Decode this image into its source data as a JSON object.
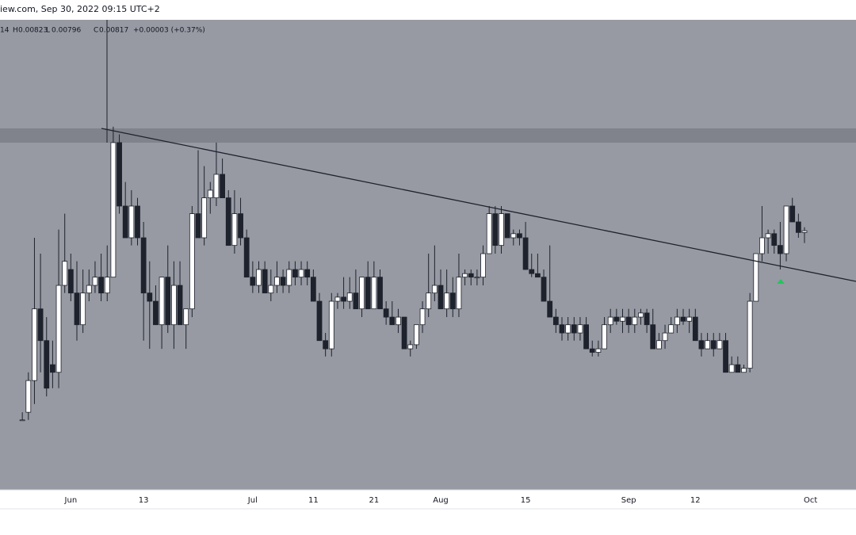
{
  "chart_data": {
    "type": "candlestick",
    "site_fragment": "iew.com, Sep 30, 2022 09:15 UTC+2",
    "legend": {
      "open_fragment": "14",
      "high_label": "H",
      "low_label": "L",
      "close_label": "C",
      "change": "+0.00003 (+0.37%)"
    },
    "categories": [
      null,
      null,
      null,
      null,
      null,
      null,
      null,
      null,
      "Jun",
      null,
      null,
      null,
      null,
      null,
      null,
      null,
      null,
      null,
      null,
      null,
      "13",
      null,
      null,
      null,
      null,
      null,
      null,
      null,
      null,
      null,
      null,
      null,
      null,
      null,
      null,
      null,
      null,
      null,
      "Jul",
      null,
      null,
      null,
      null,
      null,
      null,
      null,
      null,
      null,
      "11",
      null,
      null,
      null,
      null,
      null,
      null,
      null,
      null,
      null,
      "21",
      null,
      null,
      null,
      null,
      null,
      null,
      null,
      null,
      null,
      null,
      "Aug",
      null,
      null,
      null,
      null,
      null,
      null,
      null,
      null,
      null,
      null,
      null,
      null,
      null,
      "15",
      null,
      null,
      null,
      null,
      null,
      null,
      null,
      null,
      null,
      null,
      null,
      null,
      null,
      null,
      null,
      null,
      "Sep",
      null,
      null,
      null,
      null,
      null,
      null,
      null,
      null,
      null,
      null,
      "12",
      null,
      null,
      null,
      null,
      null,
      null,
      null,
      null,
      null,
      null,
      null,
      null,
      null,
      null,
      null,
      null,
      null,
      null,
      "Oct"
    ],
    "open": [
      0.00495,
      0.00508,
      0.00562,
      0.00684,
      0.0063,
      0.00589,
      0.00576,
      0.00724,
      0.00751,
      0.00711,
      0.00657,
      0.00711,
      0.00724,
      0.00738,
      0.00711,
      0.00738,
      0.00967,
      0.00859,
      0.00805,
      0.00859,
      0.00805,
      0.00711,
      0.00697,
      0.00657,
      0.00738,
      0.00657,
      0.00724,
      0.00657,
      0.00684,
      0.00846,
      0.00805,
      0.00873,
      0.00873,
      0.00913,
      0.00873,
      0.00792,
      0.00846,
      0.00805,
      0.00738,
      0.00724,
      0.00751,
      0.00711,
      0.00724,
      0.00738,
      0.00724,
      0.00751,
      0.00738,
      0.00751,
      0.00738,
      0.00697,
      0.0063,
      0.00616,
      0.00697,
      0.00704,
      0.00697,
      0.00711,
      0.00684,
      0.00738,
      0.00684,
      0.00738,
      0.00684,
      0.0067,
      0.00657,
      0.0067,
      0.00616,
      0.00623,
      0.00657,
      0.00684,
      0.00711,
      0.00724,
      0.00684,
      0.00711,
      0.00684,
      0.00738,
      0.00744,
      0.00738,
      0.00738,
      0.00778,
      0.00846,
      0.00792,
      0.00846,
      0.00805,
      0.00812,
      0.00805,
      0.00751,
      0.00744,
      0.00738,
      0.00697,
      0.0067,
      0.00657,
      0.00643,
      0.00657,
      0.00643,
      0.00657,
      0.00616,
      0.0061,
      0.00616,
      0.00657,
      0.0067,
      0.00663,
      0.0067,
      0.00657,
      0.0067,
      0.00677,
      0.00657,
      0.00616,
      0.0063,
      0.00643,
      0.00657,
      0.0067,
      0.00663,
      0.0067,
      0.0063,
      0.00616,
      0.0063,
      0.00616,
      0.0063,
      0.00576,
      0.00589,
      0.00576,
      0.00583,
      0.00697,
      0.00778,
      0.00805,
      0.00812,
      0.00792,
      0.00778,
      0.00859,
      0.00832,
      0.00814,
      null
    ],
    "high": [
      0.00508,
      0.00576,
      0.00805,
      0.00778,
      0.0067,
      0.0063,
      0.00819,
      0.00846,
      0.00778,
      0.00765,
      0.00751,
      0.00751,
      0.00765,
      0.00778,
      0.00792,
      0.00994,
      0.00981,
      0.009,
      0.00886,
      0.00873,
      0.00832,
      0.00765,
      0.00724,
      0.00738,
      0.00792,
      0.00765,
      0.00765,
      0.00684,
      0.00859,
      0.00954,
      0.00927,
      0.009,
      0.00967,
      0.0094,
      0.00886,
      0.00886,
      0.00873,
      0.00819,
      0.00765,
      0.00765,
      0.00765,
      0.00751,
      0.00765,
      0.00751,
      0.00765,
      0.00765,
      0.00765,
      0.00765,
      0.00751,
      0.00711,
      0.00643,
      0.00711,
      0.00711,
      0.00738,
      0.00738,
      0.00751,
      0.00738,
      0.00765,
      0.00765,
      0.00751,
      0.00697,
      0.00697,
      0.00684,
      0.0067,
      0.0063,
      0.00657,
      0.00697,
      0.00778,
      0.00792,
      0.00751,
      0.00751,
      0.00738,
      0.00778,
      0.00751,
      0.00751,
      0.00751,
      0.00792,
      0.00859,
      0.00859,
      0.00859,
      0.00846,
      0.00819,
      0.00819,
      0.00832,
      0.00778,
      0.00778,
      0.00751,
      0.00792,
      0.00684,
      0.0067,
      0.0067,
      0.0067,
      0.0067,
      0.0067,
      0.0063,
      0.0063,
      0.0067,
      0.00684,
      0.00684,
      0.00684,
      0.00684,
      0.00684,
      0.00684,
      0.00684,
      0.00684,
      0.00643,
      0.00657,
      0.0067,
      0.00684,
      0.00684,
      0.00684,
      0.00684,
      0.00643,
      0.00643,
      0.00643,
      0.00643,
      0.00643,
      0.00603,
      0.00603,
      0.00589,
      0.00711,
      0.00778,
      0.00859,
      0.00819,
      0.00819,
      0.00832,
      0.00859,
      0.00873,
      0.00846,
      0.00823,
      null
    ],
    "low": [
      0.00495,
      0.00495,
      0.00522,
      0.00576,
      0.00535,
      0.00549,
      0.00549,
      0.00711,
      0.00697,
      0.0063,
      0.00643,
      0.00697,
      0.00711,
      0.00697,
      0.00697,
      0.00738,
      0.00846,
      0.00805,
      0.00792,
      0.00792,
      0.0063,
      0.00616,
      0.00657,
      0.00616,
      0.00643,
      0.00616,
      0.00657,
      0.00616,
      0.0067,
      0.00805,
      0.00792,
      0.00846,
      0.00859,
      0.00873,
      0.00792,
      0.00778,
      0.00792,
      0.00738,
      0.00711,
      0.00711,
      0.00711,
      0.00697,
      0.00711,
      0.00711,
      0.00711,
      0.00724,
      0.00724,
      0.00724,
      0.00697,
      0.0063,
      0.00603,
      0.00603,
      0.00684,
      0.00684,
      0.00684,
      0.00684,
      0.0067,
      0.00684,
      0.00684,
      0.00684,
      0.00657,
      0.00657,
      0.00643,
      0.00616,
      0.00603,
      0.00616,
      0.00643,
      0.0067,
      0.00697,
      0.00684,
      0.0067,
      0.0067,
      0.0067,
      0.00724,
      0.00724,
      0.00724,
      0.00724,
      0.00778,
      0.00778,
      0.00778,
      0.00805,
      0.00792,
      0.00792,
      0.00751,
      0.00738,
      0.00738,
      0.00697,
      0.0067,
      0.00643,
      0.0063,
      0.0063,
      0.0063,
      0.0063,
      0.00616,
      0.00603,
      0.00603,
      0.00616,
      0.00643,
      0.00657,
      0.00643,
      0.00643,
      0.00643,
      0.00657,
      0.00643,
      0.00616,
      0.00616,
      0.00616,
      0.00643,
      0.00643,
      0.00657,
      0.00643,
      0.0063,
      0.00603,
      0.00616,
      0.00603,
      0.00616,
      0.00576,
      0.00576,
      0.00576,
      0.00576,
      0.00576,
      0.00697,
      0.00765,
      0.00778,
      0.00778,
      0.00751,
      0.00765,
      0.00832,
      0.00805,
      0.00796,
      null
    ],
    "close": [
      0.00495,
      0.00562,
      0.00684,
      0.0063,
      0.00549,
      0.00576,
      0.00724,
      0.00765,
      0.00711,
      0.00657,
      0.00711,
      0.00724,
      0.00738,
      0.00711,
      0.00738,
      0.00967,
      0.00859,
      0.00805,
      0.00859,
      0.00805,
      0.00711,
      0.00697,
      0.00657,
      0.00738,
      0.00657,
      0.00724,
      0.00657,
      0.00684,
      0.00846,
      0.00805,
      0.00873,
      0.00886,
      0.00913,
      0.00873,
      0.00792,
      0.00846,
      0.00805,
      0.00738,
      0.00724,
      0.00751,
      0.00711,
      0.00724,
      0.00738,
      0.00724,
      0.00751,
      0.00738,
      0.00751,
      0.00738,
      0.00697,
      0.0063,
      0.00616,
      0.00697,
      0.00704,
      0.00697,
      0.00711,
      0.00684,
      0.00738,
      0.00684,
      0.00738,
      0.00684,
      0.0067,
      0.00657,
      0.0067,
      0.00616,
      0.00623,
      0.00657,
      0.00684,
      0.00711,
      0.00724,
      0.00684,
      0.00711,
      0.00684,
      0.00738,
      0.00744,
      0.00738,
      0.00738,
      0.00778,
      0.00846,
      0.00792,
      0.00846,
      0.00805,
      0.00812,
      0.00805,
      0.00751,
      0.00744,
      0.00738,
      0.00697,
      0.0067,
      0.00657,
      0.00643,
      0.00657,
      0.00643,
      0.00657,
      0.00616,
      0.0061,
      0.00616,
      0.00657,
      0.0067,
      0.00663,
      0.0067,
      0.00657,
      0.0067,
      0.00677,
      0.00657,
      0.00616,
      0.0063,
      0.00643,
      0.00657,
      0.0067,
      0.00663,
      0.0067,
      0.0063,
      0.00616,
      0.0063,
      0.00616,
      0.0063,
      0.00576,
      0.00589,
      0.00576,
      0.00583,
      0.00697,
      0.00778,
      0.00805,
      0.00812,
      0.00792,
      0.00778,
      0.00859,
      0.00832,
      0.00814,
      0.00817,
      null
    ],
    "ylim": [
      0.00376,
      0.01176
    ],
    "up_color": "#ffffff",
    "down_color": "#1e222d",
    "wick_color": "#1e222d"
  }
}
